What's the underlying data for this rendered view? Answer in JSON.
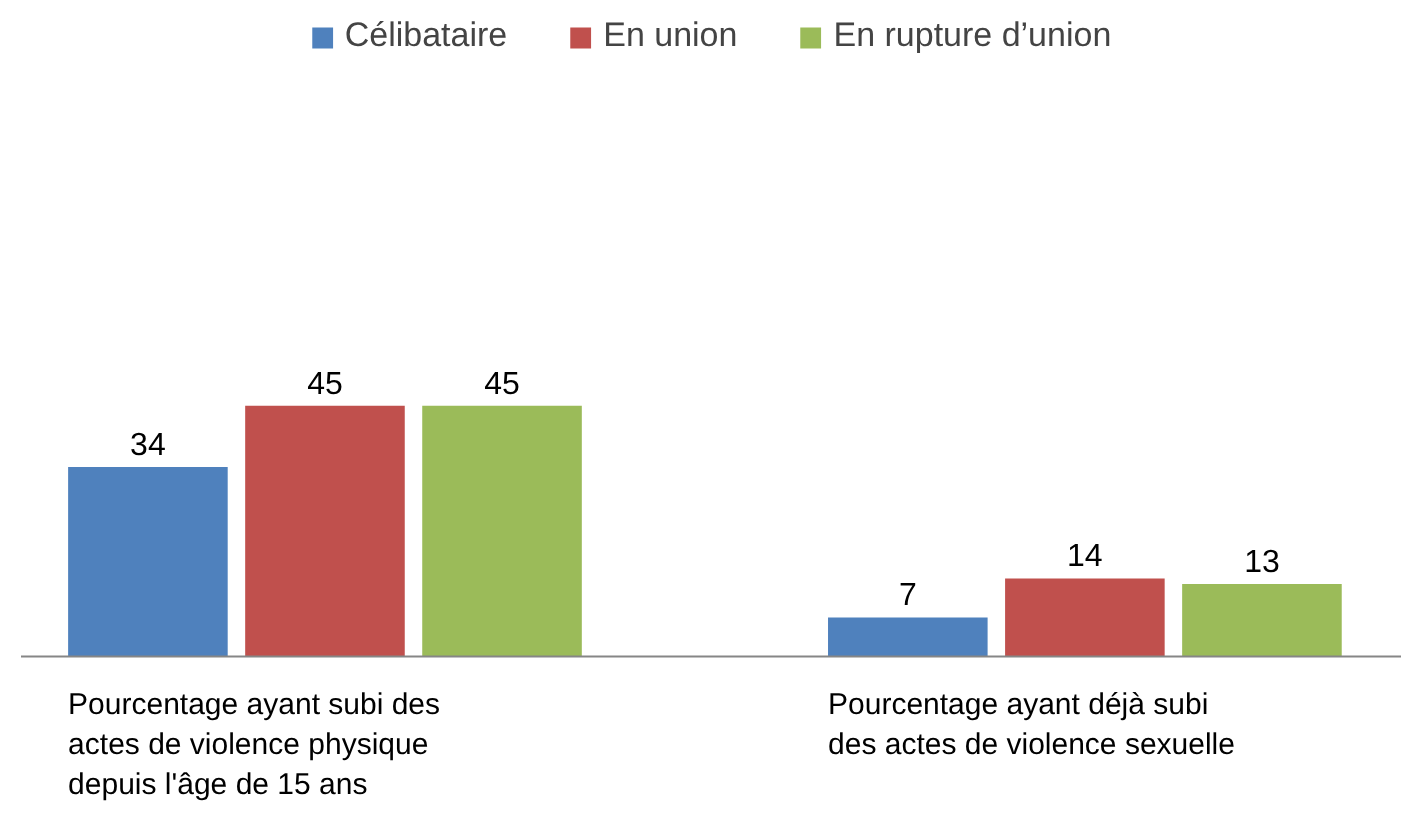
{
  "chart_data": {
    "type": "bar",
    "categories": [
      "Pourcentage ayant subi des actes de violence physique depuis l'âge de 15 ans",
      "Pourcentage ayant déjà subi des actes de violence sexuelle"
    ],
    "series": [
      {
        "name": "Célibataire",
        "color": "#4f81bd",
        "values": [
          34,
          7
        ]
      },
      {
        "name": "En union",
        "color": "#c0504d",
        "values": [
          45,
          14
        ]
      },
      {
        "name": "En rupture d’union",
        "color": "#9bbb59",
        "values": [
          45,
          13
        ]
      }
    ],
    "data_labels": true,
    "legend": "top",
    "grid": false
  }
}
